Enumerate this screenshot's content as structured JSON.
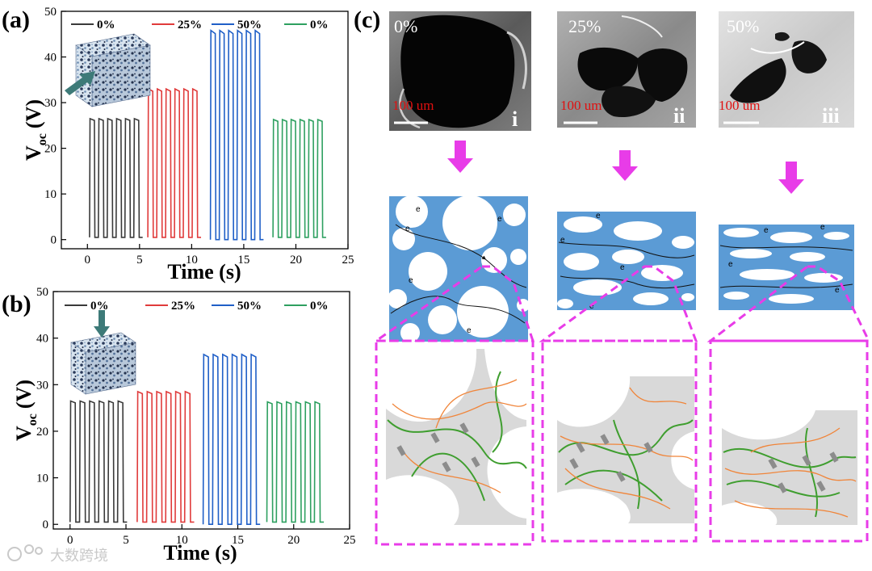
{
  "panels": {
    "a": "(a)",
    "b": "(b)",
    "c": "(c)"
  },
  "chart_data": [
    {
      "id": "a",
      "type": "line",
      "xlabel": "Time (s)",
      "ylabel_main": "V",
      "ylabel_sub": "oc",
      "ylabel_unit": "(V)",
      "xlim": [
        -2.5,
        25
      ],
      "ylim": [
        -2,
        50
      ],
      "xticks": [
        0,
        5,
        10,
        15,
        20,
        25
      ],
      "yticks": [
        0,
        10,
        20,
        30,
        40,
        50
      ],
      "grid": false,
      "legend_position": "top",
      "series": [
        {
          "name": "0%",
          "color": "#3a3a3a",
          "start": 0.2,
          "period": 0.85,
          "pulses": 6,
          "duty": 0.55,
          "high": 26.5,
          "low": 0.5
        },
        {
          "name": "25%",
          "color": "#e03b3b",
          "start": 5.8,
          "period": 0.85,
          "pulses": 6,
          "duty": 0.55,
          "high": 33,
          "low": 0.5
        },
        {
          "name": "50%",
          "color": "#1f5fc7",
          "start": 11.8,
          "period": 0.85,
          "pulses": 6,
          "duty": 0.55,
          "high": 45.8,
          "low": 0
        },
        {
          "name": "0%",
          "color": "#2ea060",
          "start": 17.8,
          "period": 0.85,
          "pulses": 6,
          "duty": 0.55,
          "high": 26.3,
          "low": 0.5
        }
      ]
    },
    {
      "id": "b",
      "type": "line",
      "xlabel": "Time (s)",
      "ylabel_main": "V",
      "ylabel_sub": "oc",
      "ylabel_unit": "(V)",
      "xlim": [
        -1.5,
        25
      ],
      "ylim": [
        -1,
        50
      ],
      "xticks": [
        0,
        5,
        10,
        15,
        20,
        25
      ],
      "yticks": [
        0,
        10,
        20,
        30,
        40,
        50
      ],
      "grid": false,
      "legend_position": "top",
      "series": [
        {
          "name": "0%",
          "color": "#3a3a3a",
          "start": 0.0,
          "period": 0.85,
          "pulses": 6,
          "duty": 0.55,
          "high": 26.5,
          "low": 0.5
        },
        {
          "name": "25%",
          "color": "#e03b3b",
          "start": 6.0,
          "period": 0.85,
          "pulses": 6,
          "duty": 0.55,
          "high": 28.5,
          "low": 0.5
        },
        {
          "name": "50%",
          "color": "#1f5fc7",
          "start": 11.9,
          "period": 0.85,
          "pulses": 6,
          "duty": 0.55,
          "high": 36.5,
          "low": 0
        },
        {
          "name": "0%",
          "color": "#2ea060",
          "start": 17.6,
          "period": 0.85,
          "pulses": 6,
          "duty": 0.55,
          "high": 26.3,
          "low": 0.5
        }
      ]
    }
  ],
  "sem_images": [
    {
      "percent": "0%",
      "scale": "100 um",
      "roman": "i"
    },
    {
      "percent": "25%",
      "scale": "100 um",
      "roman": "ii"
    },
    {
      "percent": "50%",
      "scale": "100 um",
      "roman": "iii"
    }
  ],
  "electron_label": "e",
  "watermark": "大数跨境",
  "colors": {
    "pink": "#e83ce8",
    "foam_blue": "#5b9bd5",
    "matrix_gray": "#d9d9d9",
    "fiber_green": "#3f9e2f",
    "fiber_orange": "#f0853a",
    "arrow_teal": "#3d7a78"
  }
}
